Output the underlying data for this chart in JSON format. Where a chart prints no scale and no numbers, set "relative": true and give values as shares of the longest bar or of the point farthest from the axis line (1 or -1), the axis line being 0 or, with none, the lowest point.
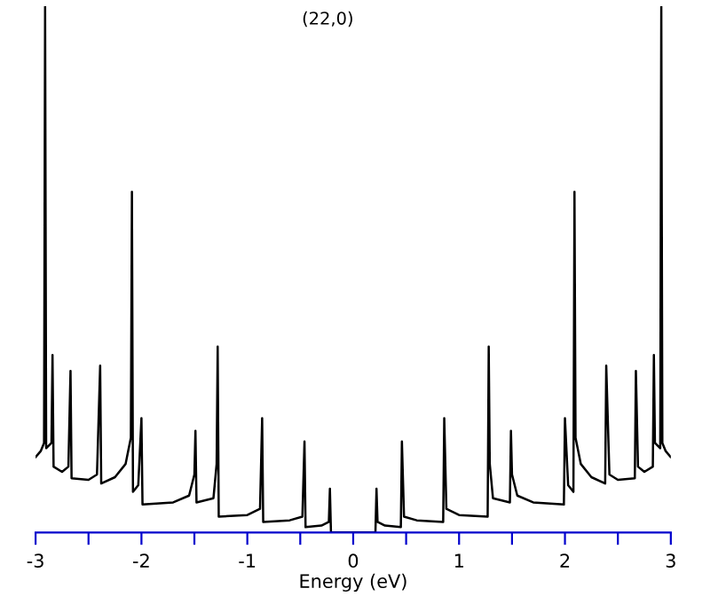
{
  "chart_data": {
    "type": "line",
    "title": "(22,0)",
    "xlabel": "Energy (eV)",
    "relative": true,
    "xlim": [
      -3,
      3
    ],
    "xticks": [
      -3,
      {
        "value": -2.5,
        "label": null
      },
      -2,
      {
        "value": -1.5,
        "label": null
      },
      -1,
      {
        "value": -0.5,
        "label": null
      },
      0,
      {
        "value": 0.5,
        "label": null
      },
      1,
      {
        "value": 1.5,
        "label": null
      },
      2,
      {
        "value": 2.5,
        "label": null
      },
      3
    ],
    "grid": false,
    "legend": false,
    "marker": "none",
    "line_style": "solid",
    "series": [
      {
        "color": "#000000",
        "x": [
          -3.0,
          -2.95,
          -2.92,
          -2.91,
          -2.9,
          -2.85,
          -2.84,
          -2.83,
          -2.75,
          -2.69,
          -2.67,
          -2.66,
          -2.5,
          -2.42,
          -2.39,
          -2.38,
          -2.25,
          -2.15,
          -2.1,
          -2.09,
          -2.08,
          -2.03,
          -2.0,
          -1.99,
          -1.7,
          -1.55,
          -1.5,
          -1.49,
          -1.48,
          -1.32,
          -1.29,
          -1.28,
          -1.27,
          -1.0,
          -0.88,
          -0.86,
          -0.85,
          -0.6,
          -0.48,
          -0.46,
          -0.45,
          -0.3,
          -0.23,
          -0.22,
          -0.21,
          0.21,
          0.22,
          0.23,
          0.3,
          0.45,
          0.46,
          0.48,
          0.6,
          0.85,
          0.86,
          0.88,
          1.0,
          1.27,
          1.28,
          1.29,
          1.32,
          1.48,
          1.49,
          1.5,
          1.55,
          1.7,
          1.99,
          2.0,
          2.03,
          2.08,
          2.09,
          2.1,
          2.15,
          2.25,
          2.38,
          2.39,
          2.42,
          2.5,
          2.66,
          2.67,
          2.69,
          2.75,
          2.83,
          2.84,
          2.85,
          2.9,
          2.91,
          2.92,
          2.95,
          3.0
        ],
        "values": [
          0.143,
          0.155,
          0.17,
          1.0,
          0.16,
          0.17,
          0.337,
          0.125,
          0.115,
          0.125,
          0.307,
          0.103,
          0.1,
          0.11,
          0.317,
          0.093,
          0.105,
          0.13,
          0.18,
          0.647,
          0.077,
          0.09,
          0.217,
          0.053,
          0.057,
          0.07,
          0.11,
          0.193,
          0.057,
          0.065,
          0.13,
          0.353,
          0.03,
          0.033,
          0.045,
          0.217,
          0.02,
          0.023,
          0.03,
          0.173,
          0.01,
          0.013,
          0.02,
          0.083,
          0,
          0,
          0.083,
          0.02,
          0.013,
          0.01,
          0.173,
          0.03,
          0.023,
          0.02,
          0.217,
          0.045,
          0.033,
          0.03,
          0.353,
          0.13,
          0.065,
          0.057,
          0.193,
          0.11,
          0.07,
          0.057,
          0.053,
          0.217,
          0.09,
          0.077,
          0.647,
          0.18,
          0.13,
          0.105,
          0.093,
          0.317,
          0.11,
          0.1,
          0.103,
          0.307,
          0.125,
          0.115,
          0.125,
          0.337,
          0.17,
          0.16,
          1.0,
          0.17,
          0.155,
          0.143
        ]
      }
    ]
  }
}
